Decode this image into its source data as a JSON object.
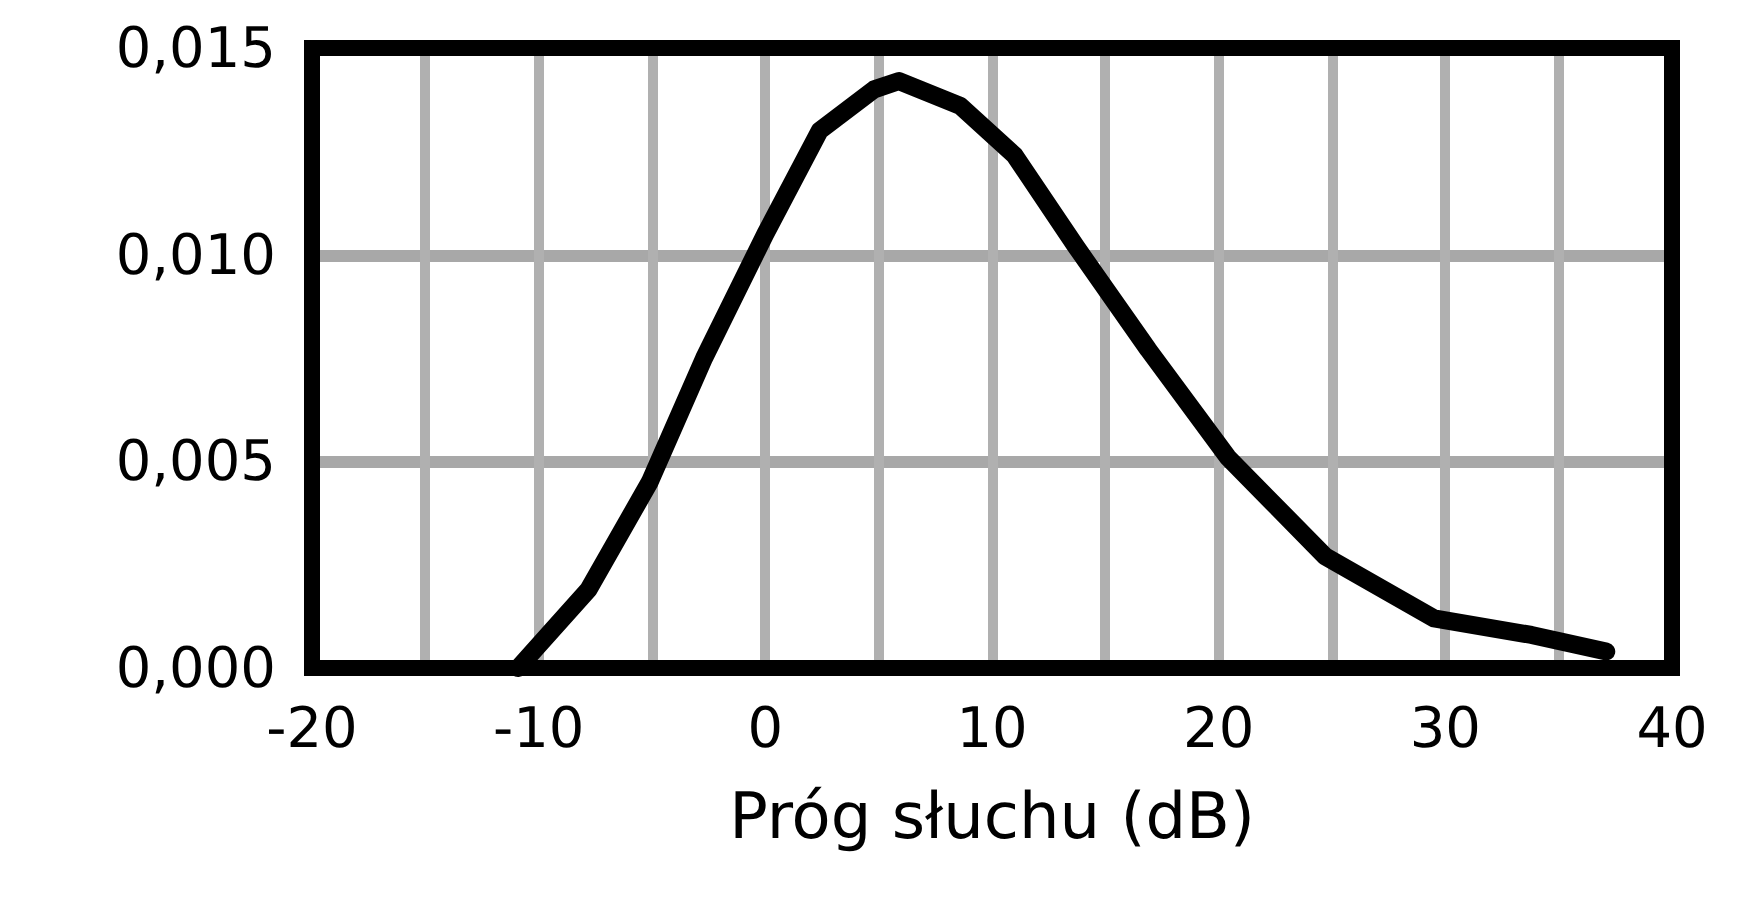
{
  "chart_data": {
    "type": "line",
    "xlabel": "Próg słuchu (dB)",
    "x": [
      -10.9,
      -7.8,
      -5.1,
      -2.7,
      0.0,
      2.4,
      4.8,
      5.9,
      8.6,
      11.0,
      13.7,
      16.9,
      20.4,
      24.7,
      29.5,
      33.8,
      37.1
    ],
    "series": [
      {
        "color": "#000000",
        "values": [
          0.0,
          0.0019,
          0.0045,
          0.0075,
          0.0105,
          0.013,
          0.014,
          0.0142,
          0.0136,
          0.0124,
          0.0102,
          0.0077,
          0.0051,
          0.0027,
          0.0012,
          0.0008,
          0.0004
        ]
      }
    ],
    "xlim": [
      -20,
      40
    ],
    "xticks": [
      -20,
      {
        "value": -15,
        "label": null
      },
      -10,
      {
        "value": -5,
        "label": null
      },
      0,
      {
        "value": 5,
        "label": null
      },
      10,
      {
        "value": 15,
        "label": null
      },
      20,
      {
        "value": 25,
        "label": null
      },
      30,
      {
        "value": 35,
        "label": null
      },
      40
    ],
    "ylim": [
      0,
      0.015
    ],
    "yticks": [
      {
        "value": 0,
        "label": "0,000"
      },
      {
        "value": 0.005,
        "label": "0,005"
      },
      {
        "value": 0.01,
        "label": "0,010"
      },
      {
        "value": 0.015,
        "label": "0,015"
      }
    ],
    "grid": true,
    "line_style": "solid"
  }
}
